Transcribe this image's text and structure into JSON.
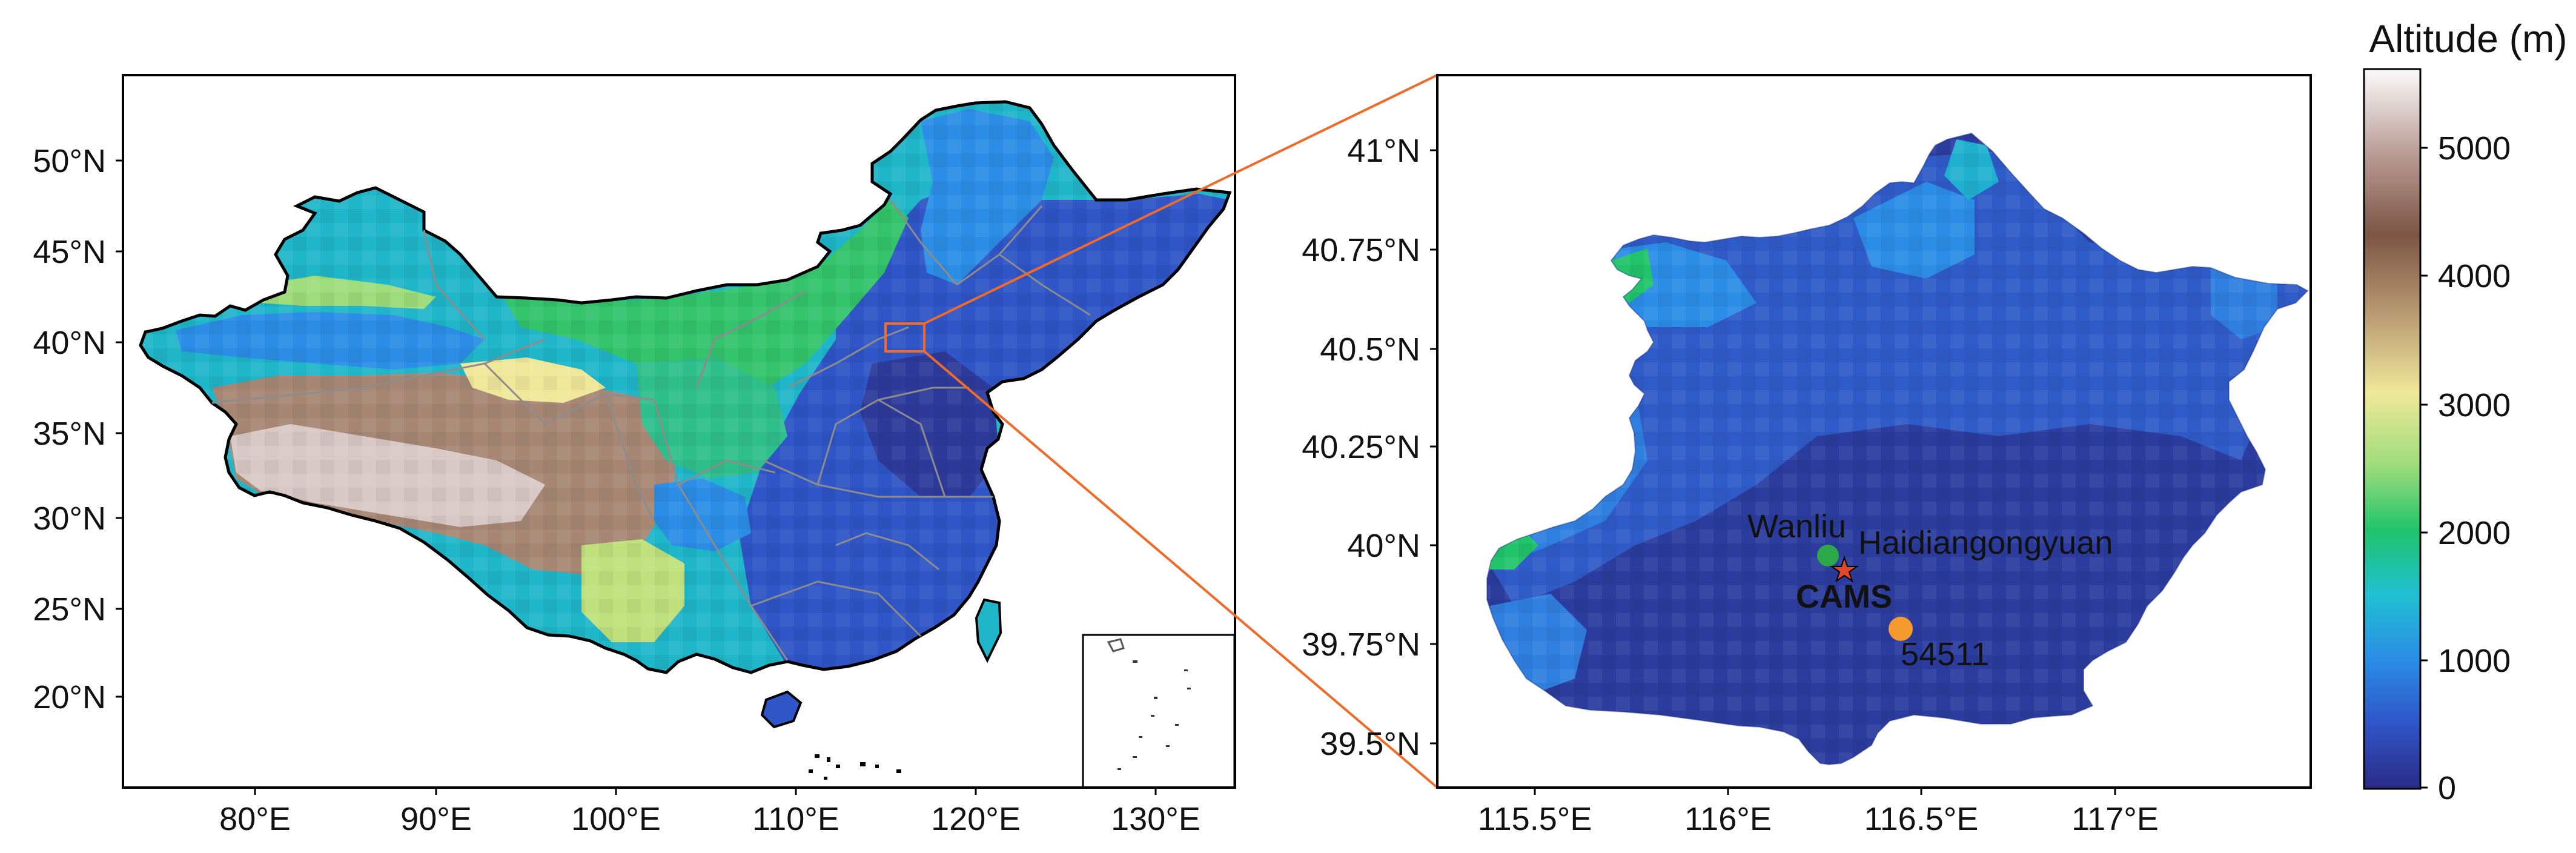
{
  "colors": {
    "lowland": "#2f3a9e",
    "plain": "#3456c8",
    "hills": "#2f7fe0",
    "mid": "#1fb6c9",
    "green": "#29c46a",
    "yellow": "#e9e58a",
    "brown": "#8e6a55",
    "snow": "#f2eeee",
    "connector": "#f06a2a",
    "wanliu": "#2aa84a",
    "station": "#f59a2e",
    "cams_star": "#e2462b",
    "borders": "#8c8c8c"
  },
  "left_map": {
    "x_ticks": [
      "80°E",
      "90°E",
      "100°E",
      "110°E",
      "120°E",
      "130°E"
    ],
    "y_ticks": [
      "50°N",
      "45°N",
      "40°N",
      "35°N",
      "30°N",
      "25°N",
      "20°N"
    ],
    "x_range": [
      73,
      135
    ],
    "y_range": [
      15,
      55
    ]
  },
  "right_map": {
    "x_ticks": [
      "115.5°E",
      "116°E",
      "116.5°E",
      "117°E"
    ],
    "y_ticks": [
      "41°N",
      "40.75°N",
      "40.5°N",
      "40.25°N",
      "40°N",
      "39.75°N",
      "39.5°N"
    ],
    "x_range": [
      115.35,
      117.55
    ],
    "y_range": [
      39.4,
      41.2
    ],
    "sites": {
      "wanliu": {
        "label": "Wanliu",
        "lon": 116.29,
        "lat": 39.98
      },
      "haidian": {
        "label": "Haidiangongyuan",
        "lon": 116.33,
        "lat": 39.95
      },
      "cams": {
        "label": "CAMS",
        "lon": 116.33,
        "lat": 39.95
      },
      "station": {
        "label": "54511",
        "lon": 116.47,
        "lat": 39.8
      }
    }
  },
  "colorbar": {
    "title": "Altitude (m)",
    "ticks": [
      "5000",
      "4000",
      "3000",
      "2000",
      "1000",
      "0"
    ],
    "range": [
      0,
      5600
    ]
  }
}
